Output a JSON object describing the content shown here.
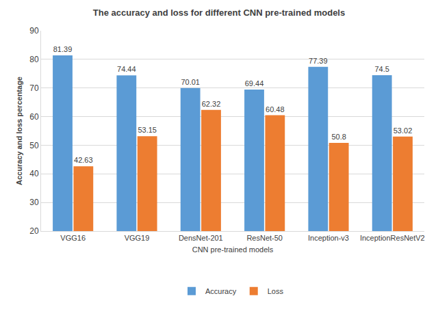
{
  "chart_data": {
    "type": "bar",
    "title": "The accuracy and loss for different CNN pre-trained models",
    "x_label": "CNN pre-trained models",
    "y_label": "Accuracy and loss percentage",
    "categories": [
      "VGG16",
      "VGG19",
      "DensNet-201",
      "ResNet-50",
      "Inception-v3",
      "InceptionResNetV2"
    ],
    "series": [
      {
        "name": "Accuracy",
        "color": "#5b9bd5",
        "values": [
          81.39,
          74.44,
          70.01,
          69.44,
          77.39,
          74.5
        ]
      },
      {
        "name": "Loss",
        "color": "#ed7d31",
        "values": [
          42.63,
          53.15,
          62.32,
          60.48,
          50.8,
          53.02
        ]
      }
    ],
    "ylim": [
      20,
      90
    ],
    "yticks": [
      20,
      30,
      40,
      50,
      60,
      70,
      80,
      90
    ],
    "grid": true,
    "legend": "bottom",
    "data_labels": true
  }
}
